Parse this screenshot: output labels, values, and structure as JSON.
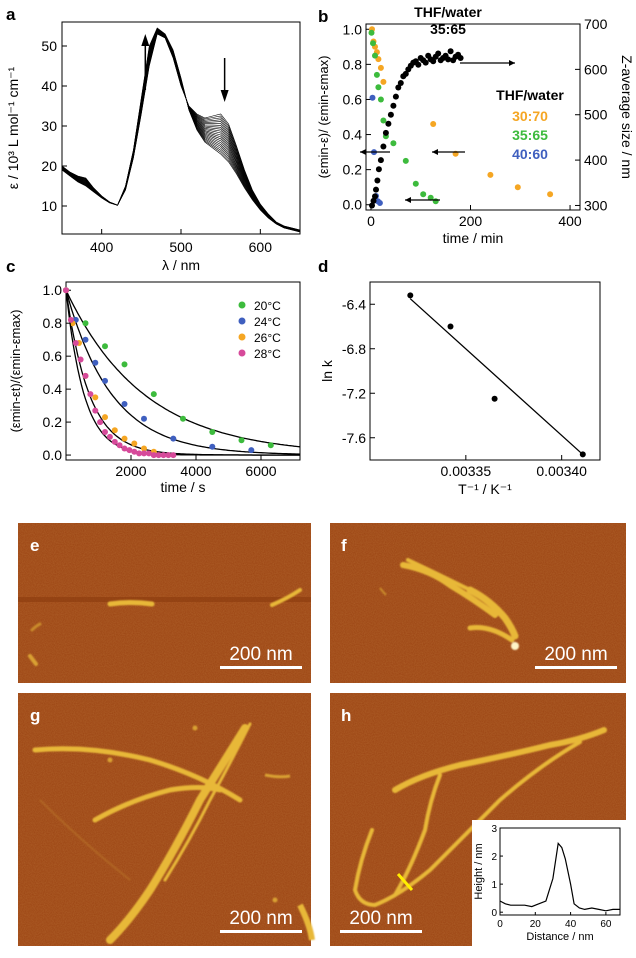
{
  "panel_labels": {
    "a": "a",
    "b": "b",
    "c": "c",
    "d": "d",
    "e": "e",
    "f": "f",
    "g": "g",
    "h": "h"
  },
  "chart_data": [
    {
      "panel": "a",
      "type": "line",
      "xlabel": "λ / nm",
      "ylabel": "ε / 10³ L mol⁻¹ cm⁻¹",
      "xlim": [
        350,
        650
      ],
      "ylim": [
        3,
        56
      ],
      "xticks": [
        "400",
        "500",
        "600"
      ],
      "yticks": [
        "10",
        "20",
        "30",
        "40",
        "50"
      ],
      "series_count": 22,
      "first_spectrum": {
        "x": [
          350,
          360,
          370,
          380,
          390,
          400,
          410,
          420,
          430,
          440,
          450,
          460,
          470,
          480,
          490,
          500,
          510,
          520,
          530,
          540,
          550,
          560,
          570,
          580,
          590,
          600,
          610,
          620,
          630,
          640,
          650
        ],
        "y": [
          20,
          18.5,
          17.5,
          17,
          14.5,
          12.5,
          11,
          10.2,
          14,
          22,
          33,
          45,
          53,
          52,
          47,
          40,
          35,
          33,
          32,
          32.5,
          33,
          30.5,
          25,
          19,
          14,
          10.5,
          8,
          6,
          5,
          4.5,
          4
        ]
      },
      "last_spectrum": {
        "x": [
          350,
          360,
          370,
          380,
          390,
          400,
          410,
          420,
          430,
          440,
          450,
          460,
          470,
          480,
          490,
          500,
          510,
          520,
          530,
          540,
          550,
          560,
          570,
          580,
          590,
          600,
          610,
          620,
          630,
          640,
          650
        ],
        "y": [
          19,
          17.5,
          16,
          15,
          13.5,
          12,
          10.8,
          10.2,
          15,
          24,
          37,
          50,
          54.5,
          53,
          49,
          42,
          34,
          29,
          26,
          24.5,
          23,
          21,
          18,
          14.5,
          11.5,
          9,
          7,
          5.5,
          4.5,
          4,
          3.5
        ]
      },
      "arrows": [
        "up at 455 nm",
        "down at 555 nm"
      ]
    },
    {
      "panel": "b",
      "type": "scatter",
      "xlabel": "time / min",
      "ylabel_left": "(εmin-ε)/ (εmin-εmax)",
      "ylabel_right": "Z-average size / nm",
      "xlim": [
        -10,
        420
      ],
      "ylim_left": [
        -0.03,
        1.03
      ],
      "ylim_right": [
        290,
        700
      ],
      "xticks": [
        "0",
        "200",
        "400"
      ],
      "yticks_left": [
        "0.0",
        "0.2",
        "0.4",
        "0.6",
        "0.8",
        "1.0"
      ],
      "yticks_right": [
        "300",
        "400",
        "500",
        "600",
        "700"
      ],
      "annotation_top": "THF/water 35:65",
      "legend_title": "THF/water",
      "series": [
        {
          "name": "30:70",
          "color": "#f5a623",
          "x": [
            2,
            5,
            8,
            12,
            15,
            20,
            25,
            125,
            170,
            240,
            295,
            360
          ],
          "y": [
            1.0,
            0.93,
            0.9,
            0.87,
            0.83,
            0.78,
            0.7,
            0.46,
            0.29,
            0.17,
            0.1,
            0.06
          ]
        },
        {
          "name": "35:65",
          "color": "#3dbb3d",
          "x": [
            1,
            4,
            8,
            12,
            15,
            20,
            25,
            30,
            45,
            70,
            90,
            105,
            120,
            130
          ],
          "y": [
            0.98,
            0.92,
            0.85,
            0.74,
            0.67,
            0.6,
            0.48,
            0.39,
            0.35,
            0.25,
            0.12,
            0.06,
            0.04,
            0.02
          ]
        },
        {
          "name": "40:60",
          "color": "#3f5fbf",
          "x": [
            3,
            6,
            10,
            14,
            18
          ],
          "y": [
            0.61,
            0.3,
            0.05,
            0.02,
            0.01
          ]
        },
        {
          "name": "Z-average",
          "color": "#000000",
          "x": [
            2,
            5,
            8,
            10,
            13,
            16,
            20,
            25,
            30,
            35,
            40,
            45,
            50,
            55,
            60,
            65,
            70,
            75,
            80,
            85,
            90,
            95,
            100,
            105,
            110,
            115,
            120,
            125,
            130,
            135,
            140,
            145,
            150,
            155,
            160,
            165,
            170,
            175,
            180
          ],
          "y": [
            300,
            310,
            320,
            335,
            355,
            380,
            400,
            430,
            460,
            480,
            500,
            520,
            540,
            560,
            570,
            585,
            590,
            600,
            608,
            615,
            618,
            610,
            625,
            620,
            615,
            630,
            622,
            618,
            628,
            635,
            620,
            625,
            630,
            622,
            640,
            620,
            628,
            632,
            625
          ]
        }
      ],
      "arrow_targets": [
        "right axis (Z-average)",
        "left axis (30:70)",
        "left axis (35:65)",
        "left axis (40:60)"
      ]
    },
    {
      "panel": "c",
      "type": "scatter",
      "xlabel": "time / s",
      "ylabel": "(εmin-εt)/(εmin-εmax)",
      "xlim": [
        0,
        7200
      ],
      "ylim": [
        -0.03,
        1.05
      ],
      "xticks": [
        "2000",
        "4000",
        "6000"
      ],
      "yticks": [
        "0.0",
        "0.2",
        "0.4",
        "0.6",
        "0.8",
        "1.0"
      ],
      "series": [
        {
          "name": "20°C",
          "color": "#3dbb3d",
          "k": 0.000416,
          "x": [
            0,
            600,
            1200,
            1800,
            2700,
            3600,
            4500,
            5400,
            6300
          ],
          "y": [
            1.0,
            0.8,
            0.66,
            0.55,
            0.37,
            0.22,
            0.14,
            0.09,
            0.06
          ]
        },
        {
          "name": "24°C",
          "color": "#3f5fbf",
          "k": 0.00071,
          "x": [
            0,
            300,
            600,
            900,
            1200,
            1800,
            2400,
            3300,
            4500,
            5700
          ],
          "y": [
            1.0,
            0.82,
            0.7,
            0.56,
            0.45,
            0.31,
            0.22,
            0.1,
            0.05,
            0.03
          ]
        },
        {
          "name": "26°C",
          "color": "#f5a623",
          "k": 0.00139,
          "x": [
            0,
            200,
            400,
            600,
            900,
            1200,
            1500,
            1800,
            2100,
            2400,
            2700
          ],
          "y": [
            1.0,
            0.8,
            0.68,
            0.48,
            0.35,
            0.23,
            0.15,
            0.1,
            0.07,
            0.04,
            0.02
          ]
        },
        {
          "name": "28°C",
          "color": "#d64a9a",
          "k": 0.0018,
          "x": [
            0,
            150,
            300,
            450,
            600,
            750,
            900,
            1050,
            1200,
            1350,
            1500,
            1650,
            1800,
            1950,
            2100,
            2250,
            2400,
            2550,
            2700,
            2850,
            3000,
            3150,
            3300
          ],
          "y": [
            1.0,
            0.82,
            0.68,
            0.58,
            0.48,
            0.37,
            0.27,
            0.2,
            0.14,
            0.11,
            0.08,
            0.06,
            0.04,
            0.03,
            0.02,
            0.01,
            0.01,
            0.01,
            0.0,
            0.0,
            0.0,
            0.0,
            0.0
          ]
        }
      ]
    },
    {
      "panel": "d",
      "type": "scatter",
      "xlabel": "T⁻¹ / K⁻¹",
      "ylabel": "ln k",
      "xlim": [
        0.0033,
        0.00342
      ],
      "ylim": [
        -7.8,
        -6.2
      ],
      "xticks": [
        "0.00335",
        "0.00340"
      ],
      "yticks": [
        "-6.4",
        "-6.8",
        "-7.2",
        "-7.6"
      ],
      "x": [
        0.003321,
        0.003342,
        0.003365,
        0.003411
      ],
      "y": [
        -6.32,
        -6.6,
        -7.25,
        -7.75
      ],
      "fit": {
        "x": [
          0.003321,
          0.003411
        ],
        "y": [
          -6.35,
          -7.75
        ]
      }
    },
    {
      "panel": "h-inset",
      "type": "line",
      "xlabel": "Distance / nm",
      "ylabel": "Height / nm",
      "xlim": [
        0,
        68
      ],
      "ylim": [
        -0.1,
        3.0
      ],
      "xticks": [
        "0",
        "20",
        "40",
        "60"
      ],
      "yticks": [
        "0",
        "1",
        "2",
        "3"
      ],
      "x": [
        0,
        3,
        6,
        10,
        14,
        18,
        22,
        26,
        30,
        33,
        35,
        37,
        40,
        42,
        45,
        48,
        52,
        56,
        60,
        64,
        68
      ],
      "y": [
        0.4,
        0.3,
        0.25,
        0.25,
        0.25,
        0.2,
        0.3,
        0.4,
        1.2,
        2.45,
        2.3,
        1.9,
        1.0,
        0.3,
        0.15,
        0.1,
        0.15,
        0.1,
        0.05,
        0.1,
        0.1
      ]
    }
  ],
  "afm": {
    "scale_bar": "200 nm",
    "colors": {
      "bg": "#9b4312",
      "fiber": "#e8b838",
      "highlight": "#fff5c8",
      "line_marker": "#ffee00"
    }
  }
}
